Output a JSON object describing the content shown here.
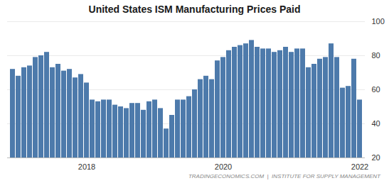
{
  "chart_data": {
    "type": "bar",
    "title": "United States ISM Manufacturing Prices Paid",
    "annotations": [
      "TRADINGECONOMICS.COM  |  INSTITUTE FOR SUPPLY MANAGEMENT"
    ],
    "categories": [
      null,
      null,
      null,
      null,
      null,
      null,
      null,
      null,
      null,
      null,
      null,
      null,
      null,
      "2018",
      null,
      null,
      null,
      null,
      null,
      null,
      null,
      null,
      null,
      null,
      null,
      null,
      null,
      null,
      null,
      null,
      null,
      null,
      null,
      null,
      null,
      null,
      null,
      "2020",
      null,
      null,
      null,
      null,
      null,
      null,
      null,
      null,
      null,
      null,
      null,
      null,
      null,
      null,
      null,
      null,
      null,
      null,
      null,
      null,
      null,
      null,
      null,
      "2022"
    ],
    "values": [
      72,
      68,
      73,
      74,
      79,
      80,
      82,
      73,
      75,
      71,
      72,
      67,
      69,
      64,
      54,
      53,
      54,
      54,
      51,
      50,
      49,
      52,
      52,
      48,
      53,
      54,
      49,
      37,
      45,
      54,
      54,
      56,
      60,
      66,
      68,
      66,
      77,
      79,
      83,
      85,
      86,
      87,
      89,
      85,
      84,
      84,
      82,
      83,
      85,
      82,
      84,
      84,
      73,
      75,
      78,
      79,
      87,
      79,
      61,
      62,
      78,
      54
    ],
    "color": "#4d7aab",
    "ylim": [
      20,
      100
    ],
    "yticks": [
      20,
      40,
      60,
      80,
      100
    ],
    "grid": true
  }
}
